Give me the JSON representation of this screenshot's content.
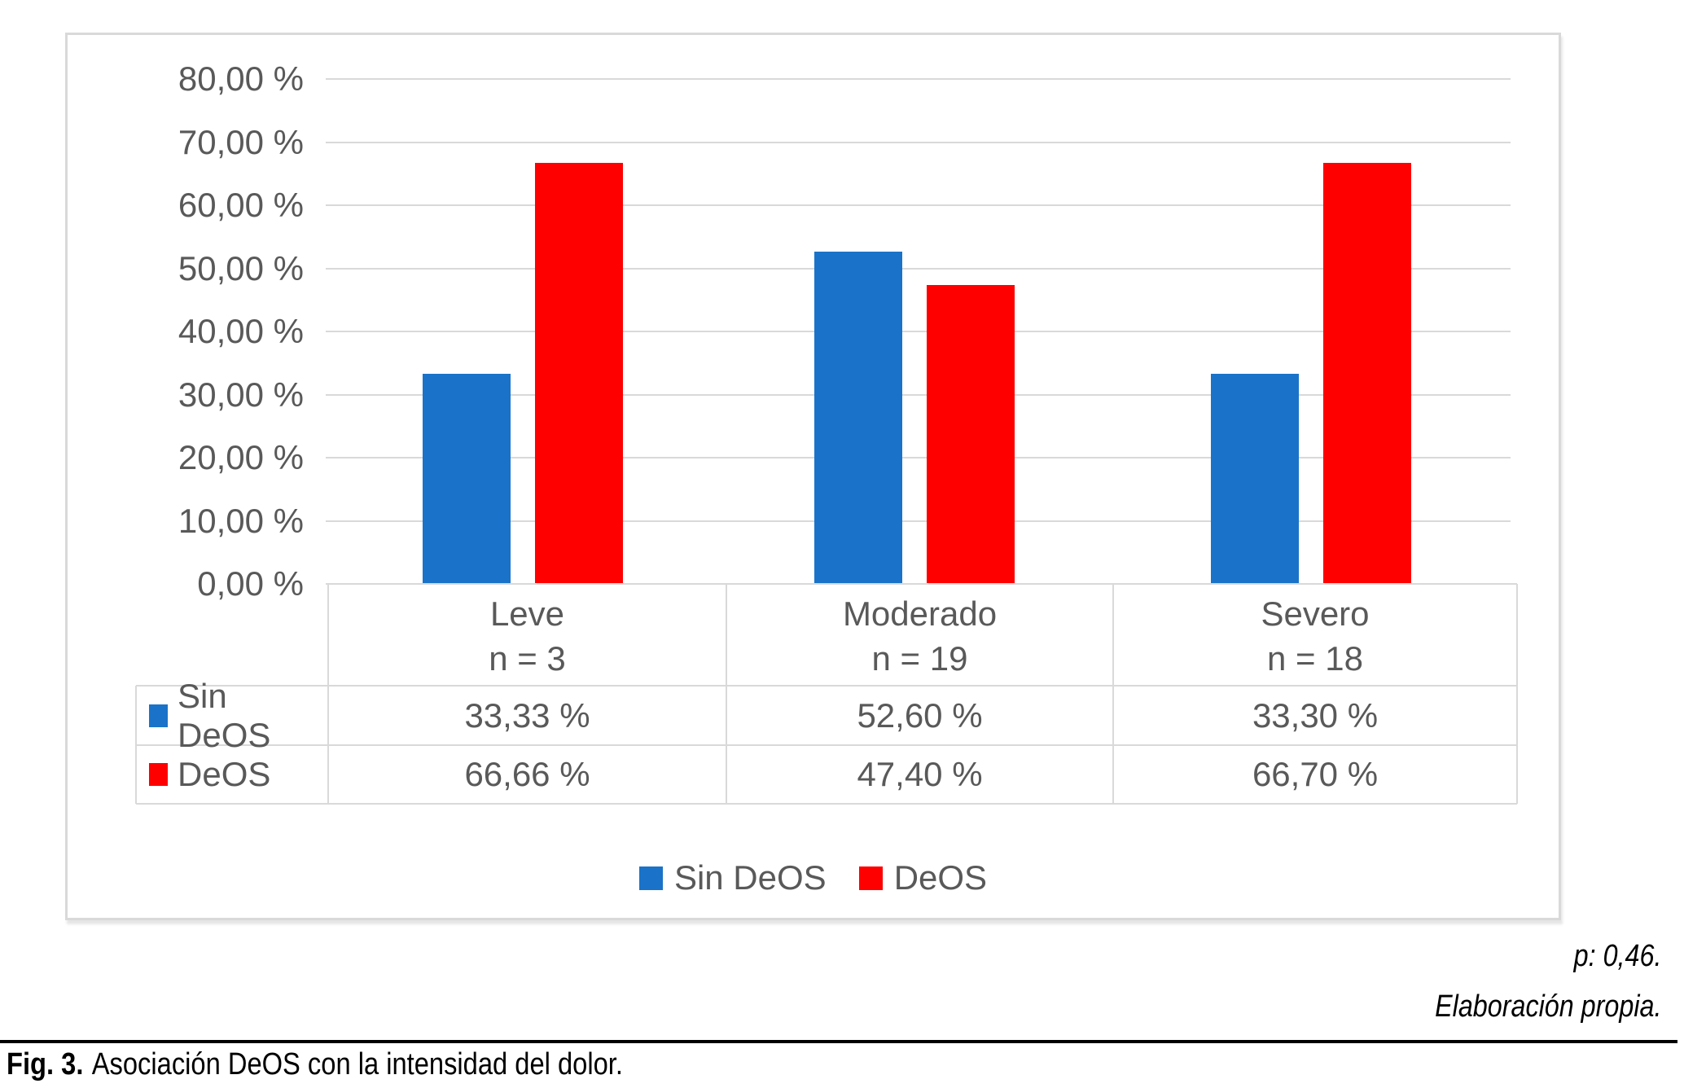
{
  "figure": {
    "notes": {
      "p_value": "p: 0,46.",
      "source": "Elaboración propia."
    },
    "caption": {
      "label": "Fig. 3.",
      "text": "Asociación DeOS con la intensidad del dolor."
    }
  },
  "chart_data": {
    "type": "bar",
    "title": "",
    "categories": [
      "Leve",
      "Moderado",
      "Severo"
    ],
    "category_counts": [
      "n = 3",
      "n = 19",
      "n = 18"
    ],
    "series": [
      {
        "name": "Sin DeOS",
        "color": "#1a73c8",
        "values": [
          33.33,
          52.6,
          33.3
        ],
        "value_labels": [
          "33,33 %",
          "52,60 %",
          "33,30 %"
        ]
      },
      {
        "name": "DeOS",
        "color": "#ff0000",
        "values": [
          66.66,
          47.4,
          66.7
        ],
        "value_labels": [
          "66,66 %",
          "47,40 %",
          "66,70 %"
        ]
      }
    ],
    "ylim": [
      0,
      80
    ],
    "ytick_labels": [
      "0,00 %",
      "10,00 %",
      "20,00 %",
      "30,00 %",
      "40,00 %",
      "50,00 %",
      "60,00 %",
      "70,00 %",
      "80,00 %"
    ],
    "grid": true,
    "legend_position": "bottom",
    "data_table_shown": true,
    "axis_text_color": "#595959",
    "gridline_color": "#d9d9d9"
  }
}
